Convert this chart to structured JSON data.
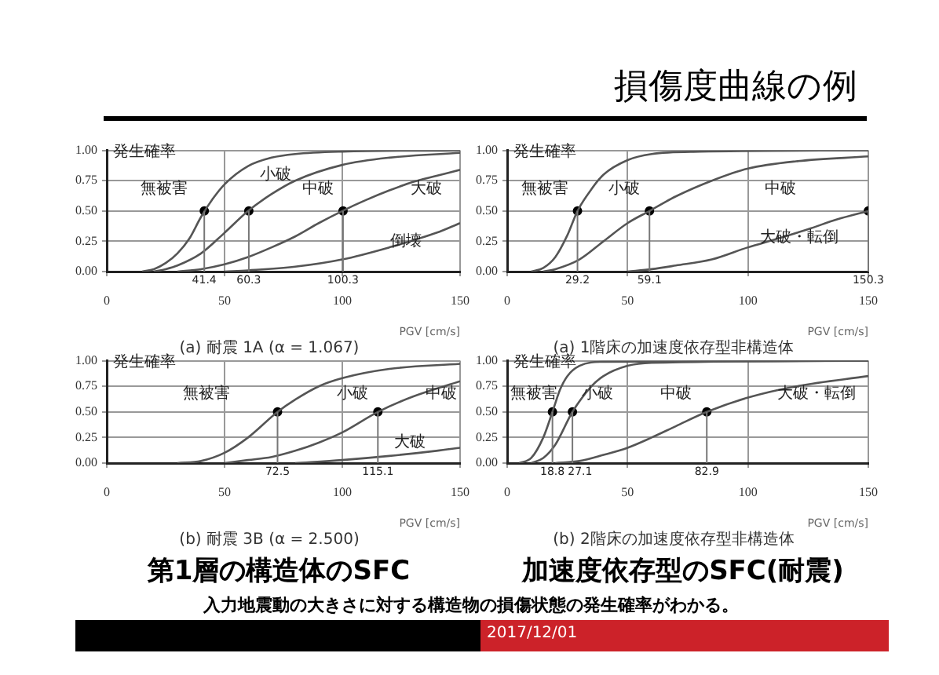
{
  "chart_data": [
    {
      "type": "line",
      "subtitle": "(a) 耐震 1A (α = 1.067)",
      "xlabel": "PGV [cm/s]",
      "ylabel": "発生確率",
      "xlim": [
        0,
        150
      ],
      "ylim": [
        0,
        1
      ],
      "xticks": [
        0,
        50,
        100,
        150
      ],
      "yticks": [
        {
          "value": 0,
          "label": "0.00"
        },
        {
          "value": 0.25,
          "label": "0.25"
        },
        {
          "value": 0.5,
          "label": "0.50"
        },
        {
          "value": 0.75,
          "label": "0.75"
        },
        {
          "value": 1,
          "label": "1.00"
        }
      ],
      "grid": true,
      "color": "#555555",
      "series": [
        {
          "x": [
            15,
            20,
            25,
            30,
            35,
            40,
            45,
            50,
            60,
            70,
            80,
            100,
            150
          ],
          "values": [
            0,
            0.02,
            0.07,
            0.15,
            0.27,
            0.45,
            0.6,
            0.72,
            0.87,
            0.94,
            0.97,
            0.99,
            1
          ]
        },
        {
          "x": [
            20,
            25,
            30,
            40,
            50,
            60,
            70,
            80,
            100,
            120,
            150
          ],
          "values": [
            0,
            0.02,
            0.05,
            0.15,
            0.32,
            0.5,
            0.64,
            0.75,
            0.88,
            0.94,
            0.98
          ]
        },
        {
          "x": [
            30,
            40,
            50,
            60,
            70,
            80,
            90,
            100,
            110,
            120,
            130,
            140,
            150
          ],
          "values": [
            0,
            0.02,
            0.06,
            0.12,
            0.2,
            0.29,
            0.4,
            0.5,
            0.59,
            0.67,
            0.74,
            0.79,
            0.84
          ]
        },
        {
          "x": [
            50,
            60,
            80,
            100,
            120,
            140,
            150
          ],
          "values": [
            0,
            0.01,
            0.04,
            0.1,
            0.2,
            0.32,
            0.4
          ]
        },
        {
          "type": "scatter",
          "marker": "circle",
          "color": "#000000",
          "x": [
            41.4,
            60.3,
            100.3
          ],
          "values": [
            0.5,
            0.5,
            0.5
          ]
        }
      ],
      "annotations": [
        "無被害",
        "小破",
        "中破",
        "大破",
        "倒壊",
        {
          "text": "41.4",
          "x": 41.4,
          "y": 0.5
        },
        {
          "text": "60.3",
          "x": 60.3,
          "y": 0.5
        },
        {
          "text": "100.3",
          "x": 100.3,
          "y": 0.5
        }
      ]
    },
    {
      "type": "line",
      "subtitle": "(a) 1階床の加速度依存型非構造体",
      "xlabel": "PGV [cm/s]",
      "ylabel": "発生確率",
      "xlim": [
        0,
        150
      ],
      "ylim": [
        0,
        1
      ],
      "xticks": [
        0,
        50,
        100,
        150
      ],
      "yticks": [
        {
          "value": 0,
          "label": "0.00"
        },
        {
          "value": 0.25,
          "label": "0.25"
        },
        {
          "value": 0.5,
          "label": "0.50"
        },
        {
          "value": 0.75,
          "label": "0.75"
        },
        {
          "value": 1,
          "label": "1.00"
        }
      ],
      "grid": true,
      "color": "#555555",
      "series": [
        {
          "x": [
            10,
            15,
            20,
            25,
            29.2,
            35,
            40,
            50,
            60,
            80,
            150
          ],
          "values": [
            0,
            0.03,
            0.12,
            0.3,
            0.5,
            0.68,
            0.8,
            0.92,
            0.97,
            0.99,
            1
          ]
        },
        {
          "x": [
            15,
            20,
            30,
            40,
            50,
            59.1,
            70,
            85,
            100,
            120,
            150
          ],
          "values": [
            0,
            0.02,
            0.1,
            0.25,
            0.4,
            0.5,
            0.62,
            0.75,
            0.85,
            0.91,
            0.95
          ]
        },
        {
          "x": [
            50,
            60,
            70,
            85,
            100,
            112,
            125,
            137,
            150
          ],
          "values": [
            0,
            0.02,
            0.05,
            0.1,
            0.2,
            0.27,
            0.35,
            0.43,
            0.5
          ]
        },
        {
          "type": "scatter",
          "marker": "circle",
          "color": "#000000",
          "x": [
            29.2,
            59.1,
            150
          ],
          "values": [
            0.5,
            0.5,
            0.5
          ]
        }
      ],
      "annotations": [
        "無被害",
        "小破",
        "中破",
        "大破・転倒",
        {
          "text": "29.2",
          "x": 29.2,
          "y": 0.5
        },
        {
          "text": "59.1",
          "x": 59.1,
          "y": 0.5
        },
        {
          "text": "150.3",
          "x": 150,
          "y": 0.5
        }
      ]
    },
    {
      "type": "line",
      "subtitle": "(b) 耐震 3B (α = 2.500)",
      "xlabel": "PGV [cm/s]",
      "ylabel": "発生確率",
      "xlim": [
        0,
        150
      ],
      "ylim": [
        0,
        1
      ],
      "xticks": [
        0,
        50,
        100,
        150
      ],
      "yticks": [
        {
          "value": 0,
          "label": "0.00"
        },
        {
          "value": 0.25,
          "label": "0.25"
        },
        {
          "value": 0.5,
          "label": "0.50"
        },
        {
          "value": 0.75,
          "label": "0.75"
        },
        {
          "value": 1,
          "label": "1.00"
        }
      ],
      "grid": true,
      "color": "#555555",
      "series": [
        {
          "x": [
            30,
            40,
            50,
            60,
            72.5,
            80,
            90,
            100,
            120,
            150
          ],
          "values": [
            0,
            0.02,
            0.1,
            0.25,
            0.5,
            0.62,
            0.75,
            0.83,
            0.92,
            0.97
          ]
        },
        {
          "x": [
            50,
            60,
            70,
            80,
            90,
            100,
            115.1,
            130,
            150
          ],
          "values": [
            0,
            0.03,
            0.06,
            0.12,
            0.2,
            0.3,
            0.5,
            0.65,
            0.8
          ]
        },
        {
          "x": [
            80,
            100,
            120,
            140,
            150
          ],
          "values": [
            0,
            0.03,
            0.07,
            0.12,
            0.15
          ]
        },
        {
          "type": "scatter",
          "marker": "circle",
          "color": "#000000",
          "x": [
            72.5,
            115.1
          ],
          "values": [
            0.5,
            0.5
          ]
        }
      ],
      "annotations": [
        "無被害",
        "小破",
        "中破",
        "大破",
        {
          "text": "72.5",
          "x": 72.5,
          "y": 0.5
        },
        {
          "text": "115.1",
          "x": 115.1,
          "y": 0.5
        }
      ]
    },
    {
      "type": "line",
      "subtitle": "(b) 2階床の加速度依存型非構造体",
      "xlabel": "PGV [cm/s]",
      "ylabel": "発生確率",
      "xlim": [
        0,
        150
      ],
      "ylim": [
        0,
        1
      ],
      "xticks": [
        0,
        50,
        100,
        150
      ],
      "yticks": [
        {
          "value": 0,
          "label": "0.00"
        },
        {
          "value": 0.25,
          "label": "0.25"
        },
        {
          "value": 0.5,
          "label": "0.50"
        },
        {
          "value": 0.75,
          "label": "0.75"
        },
        {
          "value": 1,
          "label": "1.00"
        }
      ],
      "grid": true,
      "color": "#555555",
      "series": [
        {
          "x": [
            5,
            10,
            15,
            18.8,
            22,
            25,
            30,
            40,
            150
          ],
          "values": [
            0,
            0.05,
            0.25,
            0.5,
            0.72,
            0.85,
            0.95,
            0.99,
            1
          ]
        },
        {
          "x": [
            10,
            15,
            20,
            27.1,
            35,
            40,
            50,
            60,
            150
          ],
          "values": [
            0,
            0.05,
            0.18,
            0.5,
            0.75,
            0.85,
            0.95,
            0.98,
            1
          ]
        },
        {
          "x": [
            20,
            30,
            40,
            50,
            60,
            70,
            82.9,
            100,
            120,
            150
          ],
          "values": [
            0,
            0.02,
            0.08,
            0.15,
            0.25,
            0.36,
            0.5,
            0.64,
            0.75,
            0.85
          ]
        },
        {
          "type": "scatter",
          "marker": "circle",
          "color": "#000000",
          "x": [
            18.8,
            27.1,
            82.9
          ],
          "values": [
            0.5,
            0.5,
            0.5
          ]
        }
      ],
      "annotations": [
        "無被害",
        "小破",
        "中破",
        "大破・転倒",
        {
          "text": "18.8",
          "x": 18.8,
          "y": 0.5
        },
        {
          "text": "27.1",
          "x": 27.1,
          "y": 0.5
        },
        {
          "text": "82.9",
          "x": 82.9,
          "y": 0.5
        }
      ]
    },
    {
      "type": "other",
      "title": "損傷度曲線の例",
      "annotations": [
        "第1層の構造体のSFC",
        "加速度依存型のSFC(耐震)",
        "入力地震動の大きさに対する構造物の損傷状態の発生確率がわかる。",
        "2017/12/01"
      ]
    }
  ]
}
